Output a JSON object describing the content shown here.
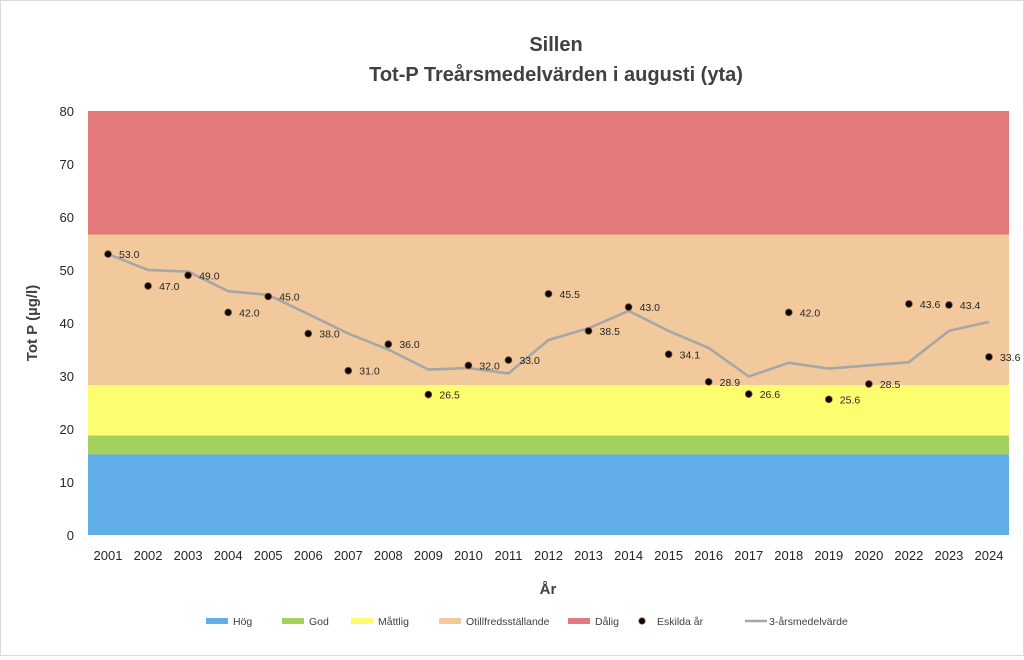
{
  "chart_data": {
    "type": "scatter+line",
    "title": "Sillen",
    "subtitle": "Tot-P Treårsmedelvärden i augusti (yta)",
    "xlabel": "År",
    "ylabel": "Tot P  (µg/l)",
    "ylim": [
      0,
      80
    ],
    "yticks": [
      0,
      10,
      20,
      30,
      40,
      50,
      60,
      70,
      80
    ],
    "categories": [
      "2001",
      "2002",
      "2003",
      "2004",
      "2005",
      "2006",
      "2007",
      "2008",
      "2009",
      "2010",
      "2011",
      "2012",
      "2013",
      "2014",
      "2015",
      "2016",
      "2017",
      "2018",
      "2019",
      "2020",
      "2022",
      "2023",
      "2024"
    ],
    "bands": [
      {
        "name": "Hög",
        "from": 0,
        "to": 15.2,
        "color": "#62aee9"
      },
      {
        "name": "God",
        "from": 15.2,
        "to": 18.8,
        "color": "#a4d05e"
      },
      {
        "name": "Måttlig",
        "from": 18.8,
        "to": 28.3,
        "color": "#fdfd70"
      },
      {
        "name": "Otillfredsställande",
        "from": 28.3,
        "to": 56.7,
        "color": "#f2c99c"
      },
      {
        "name": "Dålig",
        "from": 56.7,
        "to": 80,
        "color": "#e4797c"
      }
    ],
    "series": [
      {
        "name": "Eskilda år",
        "type": "scatter",
        "color": "#000000",
        "values": [
          53.0,
          47.0,
          49.0,
          42.0,
          45.0,
          38.0,
          31.0,
          36.0,
          26.5,
          32.0,
          33.0,
          45.5,
          38.5,
          43.0,
          34.1,
          28.9,
          26.6,
          42.0,
          25.6,
          28.5,
          43.6,
          43.4,
          33.6
        ],
        "labels": [
          "53.0",
          "47.0",
          "49.0",
          "42.0",
          "45.0",
          "38.0",
          "31.0",
          "36.0",
          "26.5",
          "32.0",
          "33.0",
          "45.5",
          "38.5",
          "43.0",
          "34.1",
          "28.9",
          "26.6",
          "42.0",
          "25.6",
          "28.5",
          "43.6",
          "43.4",
          "33.6"
        ]
      },
      {
        "name": "3-årsmedelvärde",
        "type": "line",
        "color": "#a6a6a6",
        "values": [
          53.0,
          50.0,
          49.7,
          46.0,
          45.3,
          41.7,
          38.0,
          35.0,
          31.2,
          31.5,
          30.5,
          36.8,
          39.0,
          42.3,
          38.5,
          35.3,
          29.9,
          32.5,
          31.4,
          32.0,
          32.6,
          38.5,
          40.2
        ]
      }
    ],
    "legend": {
      "position": "bottom",
      "entries": [
        "Hög",
        "God",
        "Måttlig",
        "Otillfredsställande",
        "Dålig",
        "Eskilda år",
        "3-årsmedelvärde"
      ]
    }
  }
}
